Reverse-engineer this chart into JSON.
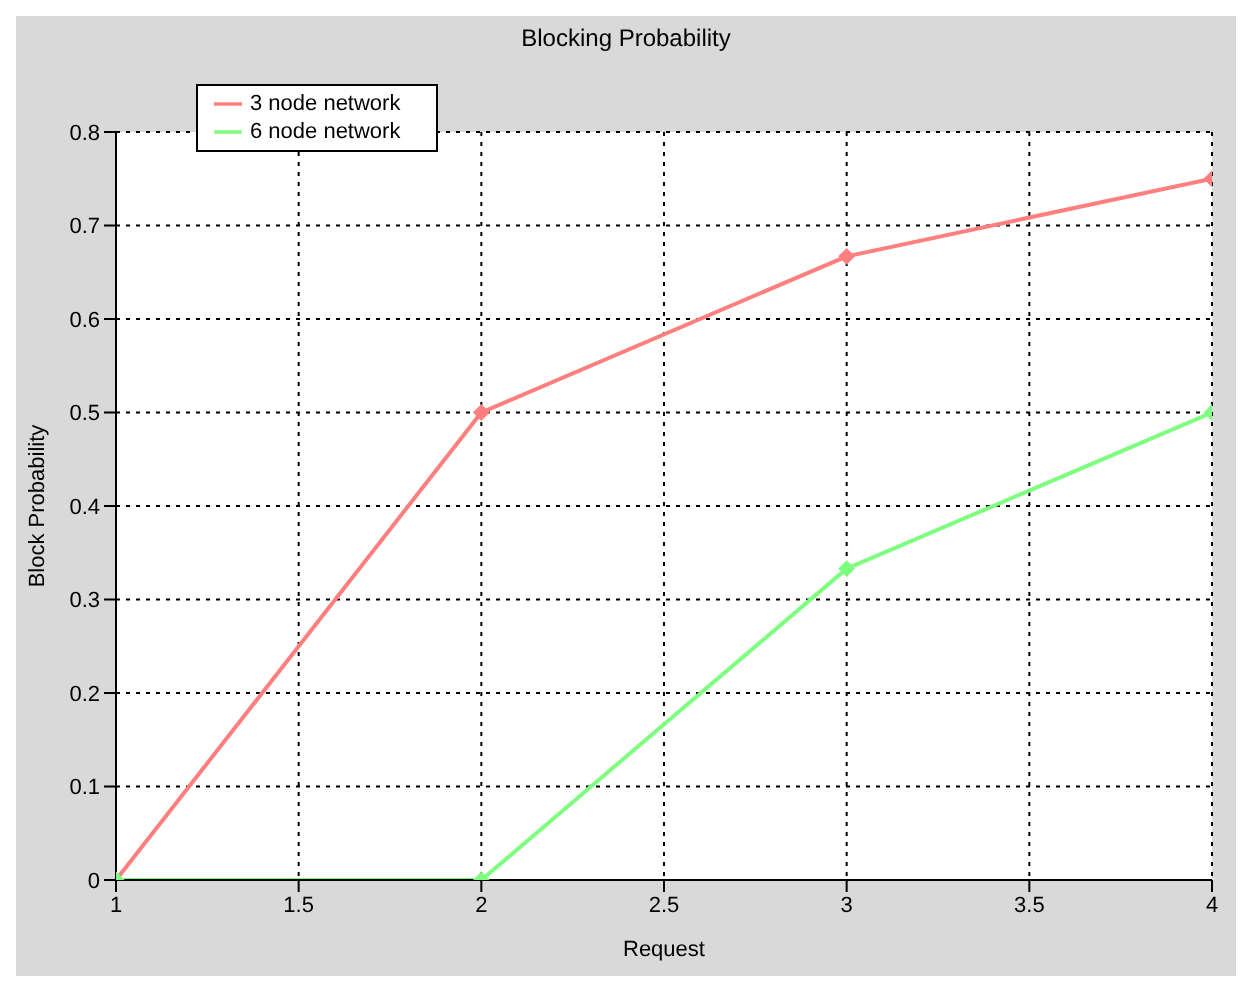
{
  "chart_data": {
    "type": "line",
    "title": "Blocking Probability",
    "xlabel": "Request",
    "ylabel": "Block Probability",
    "x": [
      1,
      2,
      3,
      4
    ],
    "series": [
      {
        "name": "3 node network",
        "color": "#ff7f7f",
        "values": [
          0,
          0.5,
          0.667,
          0.75
        ]
      },
      {
        "name": "6 node network",
        "color": "#7fff7f",
        "values": [
          0,
          0,
          0.333,
          0.5
        ]
      }
    ],
    "xlim": [
      1,
      4
    ],
    "xticks": [
      1,
      1.5,
      2,
      2.5,
      3,
      3.5,
      4
    ],
    "ylim": [
      0,
      0.8
    ],
    "yticks": [
      0,
      0.1,
      0.2,
      0.3,
      0.4,
      0.5,
      0.6,
      0.7,
      0.8
    ],
    "grid": true,
    "legend": "top left",
    "marker": "diamond",
    "line_style": "solid"
  }
}
